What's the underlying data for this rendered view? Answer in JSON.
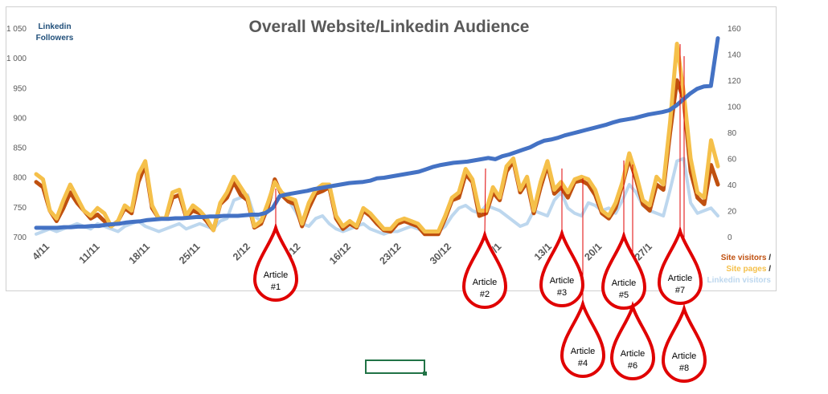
{
  "chart_data": {
    "type": "line",
    "title": "Overall Website/Linkedin Audience",
    "y_left": {
      "label": [
        "Linkedin",
        "Followers"
      ],
      "range": [
        700,
        1050
      ],
      "ticks": [
        "700",
        "750",
        "800",
        "850",
        "900",
        "950",
        "1 000",
        "1 050"
      ]
    },
    "y_right": {
      "range": [
        0,
        160
      ],
      "ticks": [
        "0",
        "20",
        "40",
        "60",
        "80",
        "100",
        "120",
        "140",
        "160"
      ]
    },
    "x_ticks": [
      "4/11",
      "11/11",
      "18/11",
      "25/11",
      "2/12",
      "9/12",
      "16/12",
      "23/12",
      "30/12",
      "6/1",
      "13/1",
      "20/1",
      "27/1"
    ],
    "x_days": 95,
    "right_legend": [
      {
        "text": "Site visitors",
        "color": "#c0500f"
      },
      {
        "text": " /",
        "color": "#262626"
      },
      {
        "text": "Site pages",
        "color": "#f5c04a"
      },
      {
        "text": " /",
        "color": "#262626"
      },
      {
        "text": "Linkedin visitors",
        "color": "#bdd7ee"
      }
    ],
    "series": [
      {
        "name": "Linkedin Followers",
        "axis": "left",
        "color": "#4472c4",
        "values": [
          715,
          715,
          715,
          715,
          716,
          716,
          717,
          717,
          718,
          718,
          720,
          721,
          722,
          724,
          725,
          726,
          728,
          729,
          730,
          730,
          731,
          731,
          732,
          733,
          733,
          734,
          734,
          735,
          735,
          735,
          736,
          737,
          737,
          740,
          748,
          768,
          771,
          773,
          775,
          777,
          780,
          782,
          784,
          786,
          788,
          790,
          791,
          792,
          794,
          798,
          799,
          801,
          803,
          805,
          807,
          809,
          813,
          817,
          820,
          822,
          824,
          825,
          826,
          828,
          830,
          832,
          830,
          835,
          838,
          842,
          846,
          850,
          856,
          861,
          863,
          866,
          870,
          873,
          876,
          879,
          882,
          885,
          888,
          892,
          895,
          897,
          899,
          902,
          905,
          907,
          909,
          912,
          920,
          930,
          940,
          948,
          952,
          953,
          1033
        ]
      },
      {
        "name": "Site visitors",
        "axis": "right",
        "color": "#c0500f",
        "values": [
          42,
          38,
          20,
          12,
          22,
          34,
          26,
          20,
          14,
          17,
          12,
          8,
          12,
          22,
          18,
          42,
          55,
          22,
          14,
          14,
          30,
          32,
          15,
          20,
          18,
          12,
          5,
          25,
          30,
          42,
          32,
          28,
          7,
          10,
          23,
          44,
          32,
          27,
          25,
          8,
          22,
          33,
          35,
          38,
          14,
          6,
          10,
          7,
          20,
          16,
          10,
          5,
          4,
          10,
          12,
          10,
          8,
          2,
          2,
          2,
          14,
          28,
          30,
          48,
          42,
          16,
          18,
          34,
          28,
          50,
          58,
          34,
          42,
          18,
          38,
          55,
          33,
          38,
          30,
          42,
          43,
          40,
          32,
          18,
          14,
          22,
          40,
          60,
          44,
          25,
          20,
          40,
          36,
          80,
          120,
          105,
          50,
          30,
          25,
          55,
          40
        ]
      },
      {
        "name": "Site pages",
        "axis": "right",
        "color": "#f5c04a",
        "values": [
          48,
          44,
          20,
          14,
          28,
          40,
          30,
          20,
          16,
          22,
          18,
          8,
          12,
          24,
          20,
          48,
          58,
          24,
          14,
          14,
          34,
          36,
          16,
          24,
          20,
          14,
          5,
          26,
          34,
          46,
          38,
          30,
          8,
          12,
          26,
          42,
          34,
          30,
          28,
          10,
          26,
          36,
          40,
          40,
          16,
          8,
          12,
          8,
          22,
          18,
          12,
          6,
          6,
          12,
          14,
          12,
          10,
          4,
          4,
          4,
          16,
          30,
          34,
          52,
          44,
          20,
          20,
          38,
          30,
          54,
          60,
          36,
          46,
          20,
          42,
          58,
          36,
          42,
          34,
          44,
          46,
          44,
          36,
          20,
          16,
          26,
          42,
          64,
          48,
          28,
          24,
          46,
          40,
          88,
          148,
          110,
          60,
          34,
          30,
          74,
          54
        ]
      },
      {
        "name": "Linkedin visitors",
        "axis": "right",
        "color": "#bdd7ee",
        "values": [
          2,
          4,
          6,
          4,
          6,
          8,
          10,
          8,
          6,
          10,
          8,
          6,
          4,
          8,
          10,
          12,
          8,
          6,
          4,
          6,
          8,
          10,
          6,
          8,
          10,
          8,
          6,
          12,
          14,
          28,
          30,
          32,
          16,
          12,
          20,
          44,
          32,
          28,
          20,
          10,
          8,
          14,
          16,
          10,
          6,
          4,
          6,
          8,
          10,
          6,
          4,
          2,
          4,
          4,
          6,
          8,
          6,
          4,
          2,
          4,
          8,
          16,
          22,
          24,
          20,
          18,
          24,
          22,
          20,
          16,
          12,
          8,
          10,
          20,
          18,
          16,
          28,
          34,
          22,
          18,
          16,
          26,
          24,
          20,
          22,
          18,
          28,
          40,
          34,
          24,
          20,
          18,
          16,
          36,
          58,
          60,
          26,
          18,
          20,
          22,
          16
        ]
      }
    ],
    "annotations": [
      {
        "text": "Article",
        "num": "#1"
      },
      {
        "text": "Article",
        "num": "#2"
      },
      {
        "text": "Article",
        "num": "#3"
      },
      {
        "text": "Article",
        "num": "#4"
      },
      {
        "text": "Article",
        "num": "#5"
      },
      {
        "text": "Article",
        "num": "#6"
      },
      {
        "text": "Article",
        "num": "#7"
      },
      {
        "text": "Article",
        "num": "#8"
      }
    ]
  },
  "sheet": {
    "selected_cell": ""
  }
}
